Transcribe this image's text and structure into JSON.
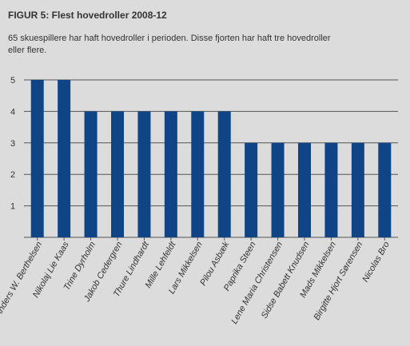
{
  "figure": {
    "title": "FIGUR 5: Flest hovedroller 2008-12",
    "subtitle": "65 skuespillere har haft hovedroller i perioden. Disse fjorten har haft tre hovedroller eller flere."
  },
  "colors": {
    "background": "#dcdcdc",
    "bar": "#0f4486",
    "grid": "#555555",
    "text": "#333333"
  },
  "chart_data": {
    "type": "bar",
    "categories": [
      "Anders W. Berthelsen",
      "Nikolaj Lie Kaas",
      "Trine Dyrholm",
      "Jakob Cedergren",
      "Thure Lindhardt",
      "Mille Lehfeldt",
      "Lars Mikkelsen",
      "Pilou Asbæk",
      "Paprika Steen",
      "Lene Maria Christensen",
      "Sidse Babett Knudsen",
      "Mads Mikkelsen",
      "Birgitte Hjort Sørensen",
      "Nicolas Bro"
    ],
    "values": [
      5,
      5,
      4,
      4,
      4,
      4,
      4,
      4,
      3,
      3,
      3,
      3,
      3,
      3
    ],
    "ylim": [
      0,
      5
    ],
    "yticks": [
      1,
      2,
      3,
      4,
      5
    ],
    "grid": true,
    "title": "FIGUR 5: Flest hovedroller 2008-12",
    "xlabel": "",
    "ylabel": ""
  }
}
